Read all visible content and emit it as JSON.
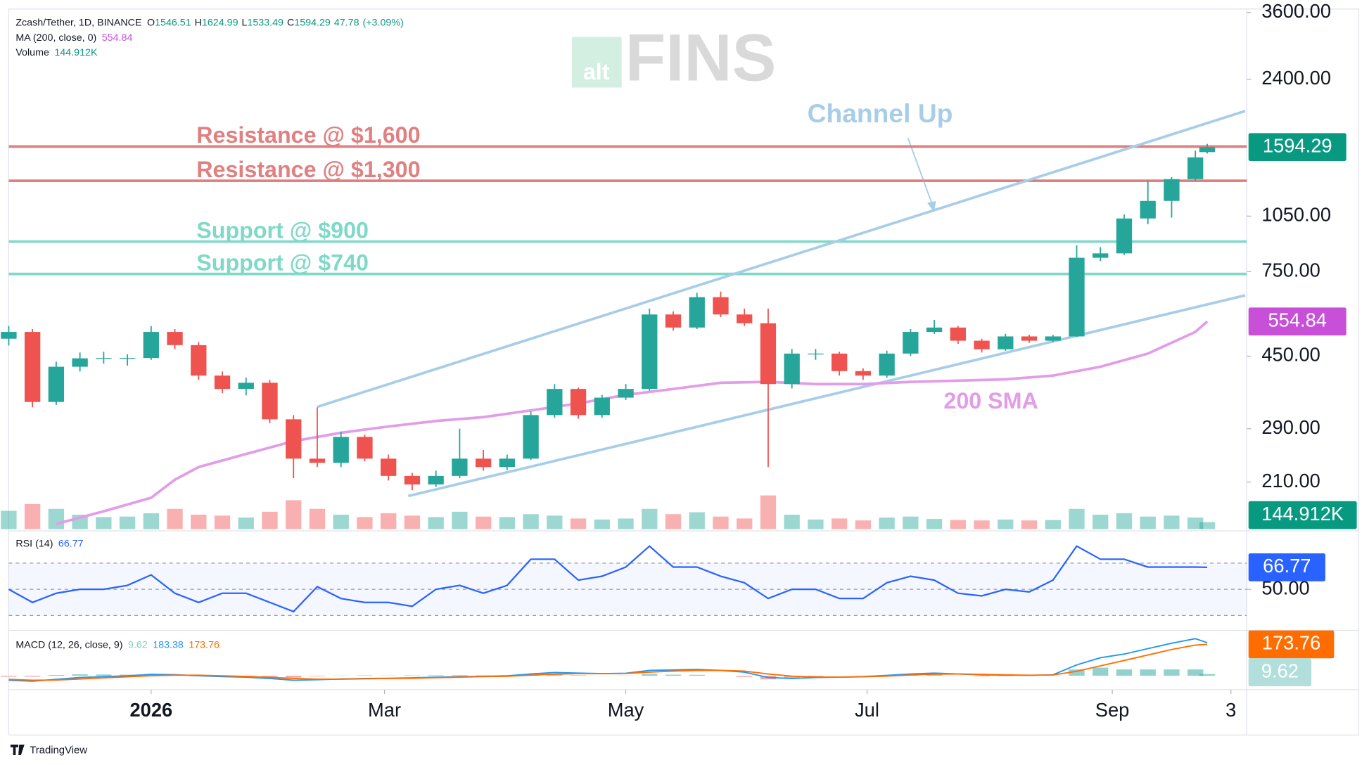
{
  "chart_data": {
    "type": "candlestick",
    "symbol": "Zcash/Tether, 1D, BINANCE",
    "ohlc_labels": [
      "O",
      "H",
      "L",
      "C"
    ],
    "change": 47.78,
    "change_pct": "(+3.09%)",
    "up_color": "#26a69a",
    "down_color": "#ef5350",
    "log": true,
    "xlim": [
      -36,
      277
    ],
    "xticks": [
      {
        "value": 0,
        "label": "2026"
      },
      {
        "value": 59,
        "label": "Mar"
      },
      {
        "value": 120,
        "label": "May"
      },
      {
        "value": 181,
        "label": "Jul"
      },
      {
        "value": 243,
        "label": "Sep"
      },
      {
        "value": 273,
        "label": "3"
      }
    ],
    "ylim": [
      158,
      3676
    ],
    "yticks": [
      {
        "value": 210,
        "label": "210.00"
      },
      {
        "value": 290,
        "label": "290.00"
      },
      {
        "value": 450,
        "label": "450.00"
      },
      {
        "value": 750,
        "label": "750.00"
      },
      {
        "value": 1050,
        "label": "1050.00"
      },
      {
        "value": 2400,
        "label": "2400.00"
      },
      {
        "value": 3600,
        "label": "3600.00"
      }
    ],
    "x": [
      -36,
      -30,
      -24,
      -18,
      -12,
      -6,
      0,
      6,
      12,
      18,
      24,
      30,
      36,
      42,
      48,
      54,
      60,
      66,
      72,
      78,
      84,
      90,
      96,
      102,
      108,
      114,
      120,
      126,
      132,
      138,
      144,
      150,
      156,
      162,
      168,
      174,
      180,
      186,
      192,
      198,
      204,
      210,
      216,
      222,
      228,
      234,
      240,
      246,
      252,
      258,
      264,
      267
    ],
    "candles": [
      [
        500,
        540,
        480,
        521
      ],
      [
        521,
        530,
        330,
        341
      ],
      [
        341,
        435,
        335,
        422
      ],
      [
        422,
        460,
        410,
        444
      ],
      [
        444,
        462,
        430,
        445
      ],
      [
        445,
        455,
        425,
        445
      ],
      [
        445,
        540,
        440,
        521
      ],
      [
        521,
        530,
        470,
        481
      ],
      [
        481,
        490,
        390,
        400
      ],
      [
        400,
        410,
        360,
        369
      ],
      [
        369,
        395,
        355,
        383
      ],
      [
        383,
        390,
        300,
        307
      ],
      [
        307,
        315,
        215,
        242
      ],
      [
        242,
        330,
        230,
        236
      ],
      [
        236,
        285,
        230,
        276
      ],
      [
        276,
        280,
        238,
        242
      ],
      [
        242,
        248,
        212,
        218
      ],
      [
        218,
        222,
        200,
        207
      ],
      [
        207,
        225,
        204,
        218
      ],
      [
        218,
        290,
        215,
        242
      ],
      [
        242,
        255,
        225,
        230
      ],
      [
        230,
        248,
        226,
        242
      ],
      [
        242,
        322,
        240,
        315
      ],
      [
        315,
        380,
        310,
        369
      ],
      [
        369,
        372,
        308,
        315
      ],
      [
        315,
        356,
        310,
        350
      ],
      [
        350,
        380,
        345,
        369
      ],
      [
        369,
        600,
        365,
        579
      ],
      [
        579,
        590,
        525,
        535
      ],
      [
        535,
        660,
        530,
        643
      ],
      [
        643,
        665,
        570,
        579
      ],
      [
        579,
        600,
        540,
        549
      ],
      [
        549,
        600,
        230,
        380
      ],
      [
        380,
        470,
        370,
        457
      ],
      [
        457,
        470,
        440,
        457
      ],
      [
        457,
        462,
        400,
        411
      ],
      [
        411,
        418,
        390,
        400
      ],
      [
        400,
        465,
        395,
        457
      ],
      [
        457,
        530,
        450,
        521
      ],
      [
        521,
        560,
        515,
        535
      ],
      [
        535,
        540,
        485,
        494
      ],
      [
        494,
        500,
        460,
        469
      ],
      [
        469,
        515,
        465,
        507
      ],
      [
        507,
        512,
        488,
        494
      ],
      [
        494,
        512,
        490,
        507
      ],
      [
        507,
        880,
        505,
        816
      ],
      [
        816,
        870,
        800,
        838
      ],
      [
        838,
        1060,
        830,
        1035
      ],
      [
        1035,
        1300,
        1000,
        1151
      ],
      [
        1151,
        1330,
        1040,
        1313
      ],
      [
        1313,
        1560,
        1300,
        1498
      ],
      [
        1546.51,
        1624.99,
        1533.49,
        1594.29
      ]
    ],
    "price_lines": [
      {
        "label": "Resistance @ $1,600",
        "value": 1600,
        "color": "#e08080"
      },
      {
        "label": "Resistance @ $1,300",
        "value": 1300,
        "color": "#e08080"
      },
      {
        "label": "Support @ $900",
        "value": 900,
        "color": "#80d8c8"
      },
      {
        "label": "Support @ $740",
        "value": 740,
        "color": "#80d8c8"
      }
    ],
    "channel": {
      "name": "Channel Up",
      "color": "#a8cde8",
      "lines": [
        {
          "x": [
            42,
            276.6
          ],
          "values": [
            331,
            1983
          ]
        },
        {
          "x": [
            65,
            276.6
          ],
          "values": [
            193,
            650
          ]
        }
      ]
    },
    "sma": {
      "name": "MA (200, close, 0)",
      "label": "200 SMA",
      "color": "#e29ce8",
      "x": [
        -24,
        -12,
        0,
        6,
        12,
        24,
        36,
        48,
        60,
        72,
        84,
        96,
        108,
        120,
        132,
        144,
        156,
        168,
        180,
        192,
        204,
        216,
        228,
        240,
        252,
        264,
        267
      ],
      "values": [
        163,
        176,
        191,
        213,
        230,
        249,
        269,
        283,
        294,
        304,
        311,
        324,
        338,
        356,
        369,
        383,
        385,
        380,
        380,
        385,
        388,
        391,
        400,
        422,
        457,
        521,
        554.84
      ]
    },
    "volume": {
      "name": "Volume",
      "last_label": "144.912K",
      "ylim": [
        0,
        1450000
      ],
      "values": [
        380000,
        520000,
        420000,
        300000,
        250000,
        260000,
        330000,
        420000,
        300000,
        280000,
        240000,
        360000,
        600000,
        420000,
        300000,
        250000,
        330000,
        280000,
        250000,
        360000,
        260000,
        250000,
        310000,
        280000,
        220000,
        200000,
        220000,
        420000,
        310000,
        350000,
        260000,
        220000,
        700000,
        300000,
        200000,
        220000,
        180000,
        240000,
        260000,
        210000,
        190000,
        180000,
        200000,
        180000,
        190000,
        420000,
        300000,
        330000,
        260000,
        280000,
        240000,
        144912
      ]
    },
    "rsi": {
      "name": "RSI (14)",
      "color": "#2962ff",
      "ylim": [
        20,
        92
      ],
      "yticks": [
        {
          "value": 50,
          "label": "50.00"
        }
      ],
      "levels": [
        70,
        50,
        30
      ],
      "values": [
        50,
        40,
        47,
        50,
        50,
        53,
        61,
        47,
        40,
        47,
        47,
        40,
        33,
        52,
        43,
        40,
        40,
        37,
        50,
        53,
        47,
        53,
        73,
        73,
        57,
        60,
        67,
        83,
        67,
        67,
        60,
        55,
        43,
        50,
        50,
        43,
        43,
        55,
        60,
        57,
        47,
        45,
        50,
        48,
        57,
        83,
        73,
        73,
        67,
        67,
        67,
        66.77
      ]
    },
    "macd": {
      "name": "MACD (12, 26, close, 9)",
      "ylim": [
        -77,
        237
      ],
      "macd": {
        "color": "#2196f3",
        "values": [
          -25,
          -30,
          -20,
          -10,
          -5,
          0,
          8,
          6,
          0,
          -5,
          -8,
          -15,
          -25,
          -22,
          -18,
          -15,
          -14,
          -12,
          -8,
          -5,
          -3,
          0,
          10,
          18,
          15,
          12,
          14,
          30,
          32,
          35,
          30,
          20,
          -10,
          -15,
          -10,
          -8,
          -5,
          2,
          10,
          15,
          10,
          5,
          3,
          2,
          5,
          60,
          100,
          120,
          150,
          180,
          205,
          183.38
        ]
      },
      "signal": {
        "color": "#ff6d00",
        "values": [
          -20,
          -25,
          -24,
          -18,
          -12,
          -6,
          0,
          3,
          3,
          0,
          -4,
          -9,
          -15,
          -19,
          -19,
          -17,
          -15,
          -14,
          -11,
          -8,
          -5,
          -3,
          3,
          9,
          12,
          12,
          13,
          20,
          26,
          30,
          30,
          26,
          10,
          -2,
          -7,
          -8,
          -6,
          -2,
          4,
          9,
          10,
          8,
          5,
          3,
          4,
          25,
          55,
          85,
          115,
          145,
          170,
          173.76
        ]
      },
      "histogram": {
        "color": "#26a69a",
        "negative_color": "#ef5350",
        "values": [
          -5,
          -5,
          4,
          8,
          7,
          6,
          8,
          3,
          -3,
          -5,
          -4,
          -6,
          -10,
          -3,
          1,
          2,
          1,
          2,
          3,
          3,
          2,
          3,
          7,
          9,
          3,
          0,
          1,
          10,
          6,
          5,
          0,
          -6,
          -20,
          -13,
          -3,
          0,
          1,
          4,
          6,
          6,
          0,
          -3,
          -2,
          -1,
          1,
          35,
          45,
          35,
          35,
          35,
          35,
          9.62
        ]
      }
    }
  },
  "watermark": {
    "alt": "alt",
    "fins": "FINS"
  },
  "footer": "TradingView"
}
